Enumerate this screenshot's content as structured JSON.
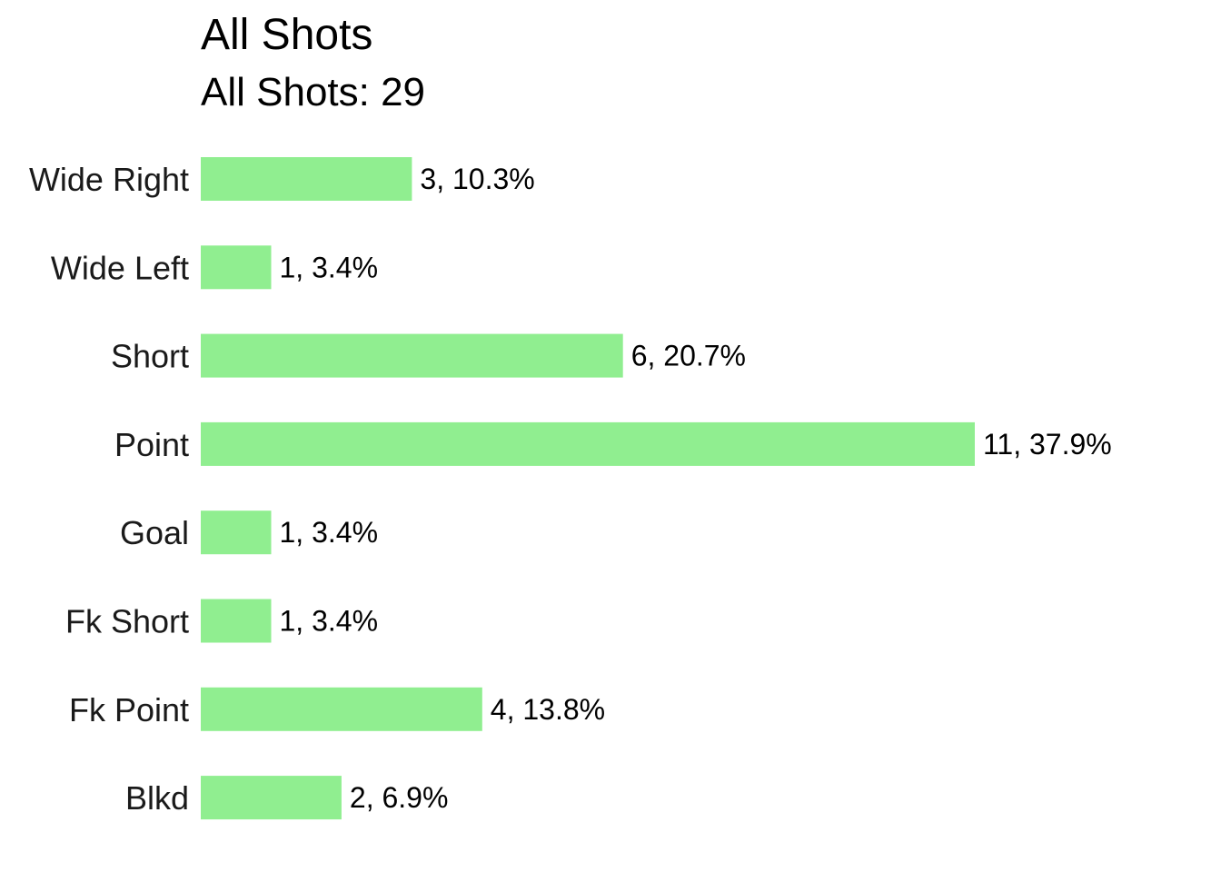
{
  "chart_data": {
    "type": "bar",
    "orientation": "horizontal",
    "title": "All Shots",
    "subtitle": "All Shots: 29",
    "xlabel": "",
    "ylabel": "",
    "grid": false,
    "legend": "none",
    "bar_color": "#90EE90",
    "categories": [
      "Wide Right",
      "Wide Left",
      "Short",
      "Point",
      "Goal",
      "Fk Short",
      "Fk Point",
      "Blkd"
    ],
    "values": [
      3,
      1,
      6,
      11,
      1,
      1,
      4,
      2
    ],
    "data_labels": [
      "3, 10.3%",
      "1, 3.4%",
      "6, 20.7%",
      "11, 37.9%",
      "1, 3.4%",
      "1, 3.4%",
      "4, 13.8%",
      "2, 6.9%"
    ],
    "xlim": [
      0,
      11
    ]
  }
}
